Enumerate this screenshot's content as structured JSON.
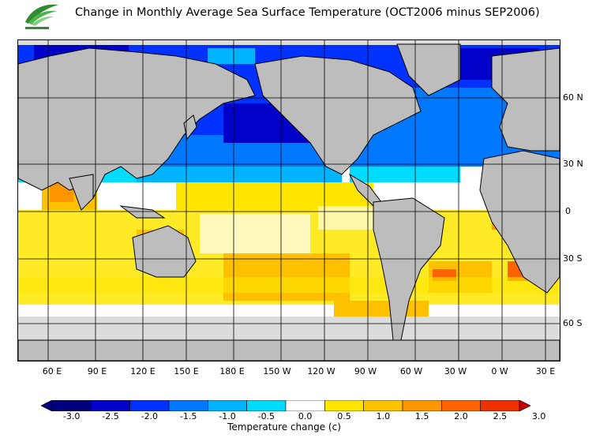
{
  "header": {
    "title": "Change in Monthly Average Sea Surface Temperature (OCT2006 minus SEP2006)",
    "logo_icon": "hko-logo-icon"
  },
  "map": {
    "lat_labels": [
      "60 N",
      "30 N",
      "0",
      "30 S",
      "60 S"
    ],
    "lon_labels": [
      "60 E",
      "90 E",
      "120 E",
      "150 E",
      "180 E",
      "150 W",
      "120 W",
      "90 W",
      "60 W",
      "30 W",
      "0 W",
      "30 E"
    ],
    "land_color": "#bdbdbd",
    "ice_color": "#dcdcdc",
    "ocean_neutral_color": "#ffffff"
  },
  "colorbar": {
    "ticks": [
      "-3.0",
      "-2.5",
      "-2.0",
      "-1.5",
      "-1.0",
      "-0.5",
      "0.0",
      "0.5",
      "1.0",
      "1.5",
      "2.0",
      "2.5",
      "3.0"
    ],
    "colors": [
      "#00007f",
      "#0000c8",
      "#0032ff",
      "#0078ff",
      "#00b4ff",
      "#00dcff",
      "#ffffff",
      "#ffe600",
      "#ffc000",
      "#ff9600",
      "#ff6400",
      "#f03200",
      "#c80000"
    ],
    "label": "Temperature change  (c)"
  }
}
